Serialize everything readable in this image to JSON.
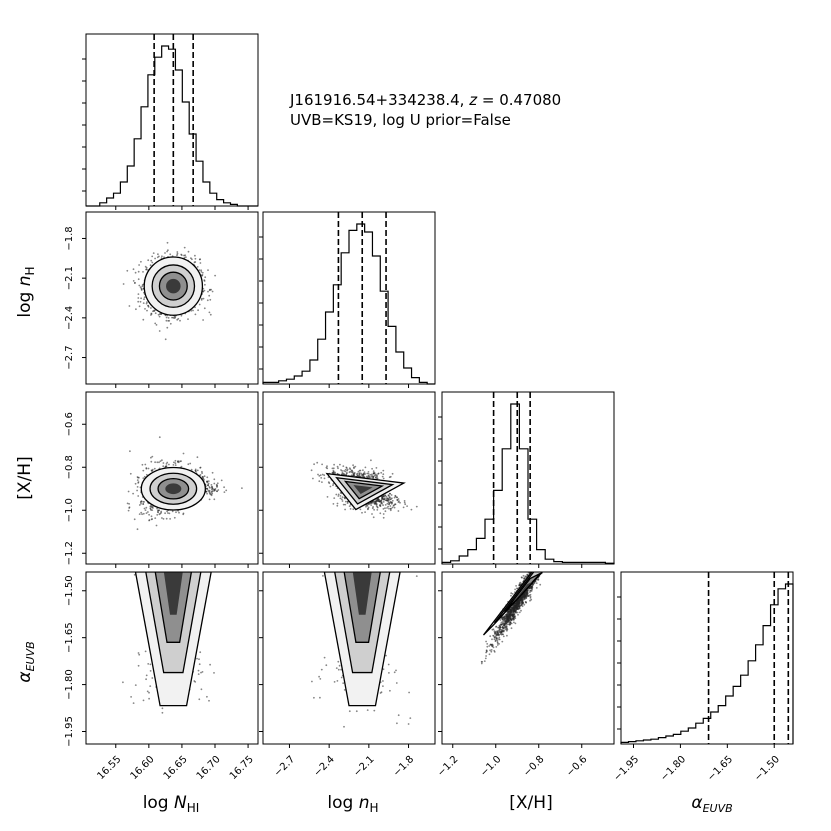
{
  "title": {
    "line1_name": "J161916.54+334238.4, ",
    "line1_z_symbol": "z",
    "line1_z_value": " = 0.47080",
    "line2": "UVB=KS19, log U prior=False"
  },
  "axis_labels": {
    "logNHI": {
      "prefix": "log ",
      "main": "N",
      "sub": "HI"
    },
    "lognH": {
      "prefix": "log ",
      "main": "n",
      "sub": "H"
    },
    "XH": {
      "prefix": "",
      "main": "[X/H]",
      "sub": ""
    },
    "alpha": {
      "prefix": "",
      "main": "α",
      "sub": "EUVB"
    }
  },
  "chart_data": {
    "type": "corner",
    "parameters": [
      {
        "key": "logNHI",
        "range": [
          16.505,
          16.765
        ],
        "ticks": [
          16.55,
          16.6,
          16.65,
          16.7,
          16.75
        ],
        "tick_labels": [
          "16.55",
          "16.60",
          "16.65",
          "16.70",
          "16.75"
        ],
        "quantiles": [
          16.608,
          16.637,
          16.667
        ],
        "histogram": [
          0,
          0,
          0.02,
          0.05,
          0.08,
          0.15,
          0.25,
          0.42,
          0.62,
          0.82,
          0.93,
          1.0,
          0.98,
          0.85,
          0.65,
          0.45,
          0.28,
          0.15,
          0.08,
          0.04,
          0.02,
          0.01,
          0,
          0,
          0
        ]
      },
      {
        "key": "lognH",
        "range": [
          -2.9,
          -1.6
        ],
        "ticks": [
          -2.7,
          -2.4,
          -2.1,
          -1.8
        ],
        "tick_labels": [
          "-2.7",
          "-2.4",
          "-2.1",
          "-1.8"
        ],
        "quantiles": [
          -2.33,
          -2.15,
          -1.97
        ],
        "histogram": [
          0.01,
          0.01,
          0.02,
          0.03,
          0.05,
          0.08,
          0.15,
          0.28,
          0.45,
          0.62,
          0.82,
          0.96,
          1.0,
          0.95,
          0.8,
          0.58,
          0.36,
          0.2,
          0.1,
          0.04,
          0.01,
          0
        ]
      },
      {
        "key": "XH",
        "range": [
          -1.25,
          -0.45
        ],
        "ticks": [
          -1.2,
          -1.0,
          -0.8,
          -0.6
        ],
        "tick_labels": [
          "-1.2",
          "-1.0",
          "-0.8",
          "-0.6"
        ],
        "quantiles": [
          -1.01,
          -0.9,
          -0.84
        ],
        "histogram": [
          0.01,
          0.02,
          0.05,
          0.09,
          0.16,
          0.28,
          0.46,
          0.72,
          1.0,
          0.72,
          0.28,
          0.09,
          0.03,
          0.015,
          0.01,
          0.01,
          0.01,
          0.01,
          0.01,
          0.005
        ]
      },
      {
        "key": "alpha",
        "range": [
          -1.99,
          -1.44
        ],
        "ticks": [
          -1.95,
          -1.8,
          -1.65,
          -1.5
        ],
        "tick_labels": [
          "-1.95",
          "-1.80",
          "-1.65",
          "-1.50"
        ],
        "quantiles": [
          -1.71,
          -1.5,
          -1.455
        ],
        "histogram": [
          0.01,
          0.015,
          0.02,
          0.025,
          0.03,
          0.04,
          0.05,
          0.06,
          0.08,
          0.1,
          0.13,
          0.16,
          0.2,
          0.24,
          0.3,
          0.36,
          0.43,
          0.52,
          0.62,
          0.74,
          0.87,
          0.97,
          1.0
        ]
      }
    ],
    "contours": [
      {
        "row": 1,
        "col": 0,
        "center": [
          16.637,
          -2.16
        ],
        "shape": "ellipse",
        "sigma": [
          0.02,
          0.1
        ]
      },
      {
        "row": 2,
        "col": 0,
        "center": [
          16.637,
          -0.9
        ],
        "shape": "blob",
        "sigma": [
          0.022,
          0.045
        ]
      },
      {
        "row": 2,
        "col": 1,
        "center": [
          -2.15,
          -0.9
        ],
        "shape": "triangle",
        "sigma": [
          0.11,
          0.04
        ]
      },
      {
        "row": 3,
        "col": 0,
        "center": [
          16.637,
          -1.48
        ],
        "shape": "funnel",
        "sigma": [
          0.02,
          0.08
        ]
      },
      {
        "row": 3,
        "col": 1,
        "center": [
          -2.15,
          -1.48
        ],
        "shape": "funnel",
        "sigma": [
          0.1,
          0.08
        ]
      },
      {
        "row": 3,
        "col": 2,
        "center": [
          -0.87,
          -1.5
        ],
        "shape": "diagonal",
        "sigma": [
          0.05,
          0.06
        ]
      }
    ]
  }
}
